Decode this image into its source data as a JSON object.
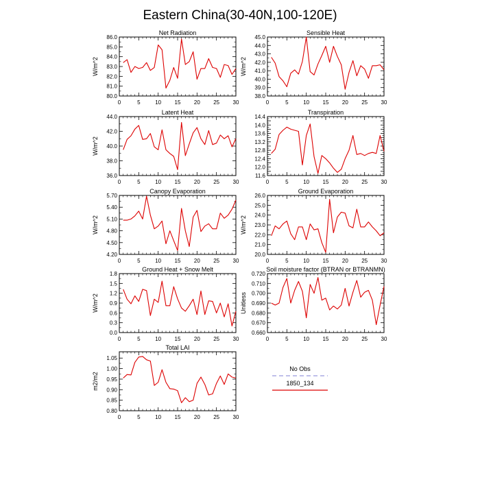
{
  "figure": {
    "title": "Eastern China(30-40N,100-120E)"
  },
  "legend": {
    "items": [
      {
        "label": "No Obs",
        "color": "#9999dd",
        "dashed": true
      },
      {
        "label": "1850_134",
        "color": "#dd0000",
        "dashed": false
      }
    ]
  },
  "chart_data": [
    {
      "type": "line",
      "title": "Net Radiation",
      "ylabel": "W/m^2",
      "xlim": [
        0,
        30
      ],
      "ylim": [
        80.0,
        86.0
      ],
      "xticks": [
        0,
        5,
        10,
        15,
        20,
        25,
        30
      ],
      "yticks": [
        80.0,
        81.0,
        82.0,
        83.0,
        84.0,
        85.0,
        86.0
      ],
      "ytick_labels": [
        "80.0",
        "81.0",
        "82.0",
        "83.0",
        "84.0",
        "85.0",
        "86.0"
      ],
      "series": [
        {
          "name": "1850_134",
          "color": "#dd0000",
          "x": [
            1,
            2,
            3,
            4,
            5,
            6,
            7,
            8,
            9,
            10,
            11,
            12,
            13,
            14,
            15,
            16,
            17,
            18,
            19,
            20,
            21,
            22,
            23,
            24,
            25,
            26,
            27,
            28,
            29,
            30
          ],
          "y": [
            83.4,
            83.7,
            82.4,
            83.0,
            82.8,
            82.9,
            83.4,
            82.6,
            82.9,
            85.2,
            84.7,
            80.8,
            81.6,
            82.9,
            81.8,
            85.8,
            83.2,
            83.5,
            84.5,
            81.7,
            82.8,
            82.8,
            83.8,
            82.9,
            82.8,
            81.9,
            83.2,
            83.1,
            82.2,
            82.8
          ]
        }
      ]
    },
    {
      "type": "line",
      "title": "Sensible Heat",
      "ylabel": "W/m^2",
      "xlim": [
        0,
        30
      ],
      "ylim": [
        38.0,
        45.0
      ],
      "xticks": [
        0,
        5,
        10,
        15,
        20,
        25,
        30
      ],
      "yticks": [
        38.0,
        39.0,
        40.0,
        41.0,
        42.0,
        43.0,
        44.0,
        45.0
      ],
      "ytick_labels": [
        "38.0",
        "39.0",
        "40.0",
        "41.0",
        "42.0",
        "43.0",
        "44.0",
        "45.0"
      ],
      "series": [
        {
          "name": "1850_134",
          "color": "#dd0000",
          "x": [
            1,
            2,
            3,
            4,
            5,
            6,
            7,
            8,
            9,
            10,
            11,
            12,
            13,
            14,
            15,
            16,
            17,
            18,
            19,
            20,
            21,
            22,
            23,
            24,
            25,
            26,
            27,
            28,
            29,
            30
          ],
          "y": [
            42.6,
            41.9,
            40.3,
            39.8,
            39.1,
            40.7,
            41.1,
            40.6,
            42.1,
            45.0,
            40.9,
            40.5,
            41.8,
            42.8,
            43.9,
            42.0,
            43.9,
            42.7,
            41.7,
            38.8,
            40.8,
            42.2,
            40.4,
            41.6,
            41.2,
            40.1,
            41.6,
            41.6,
            41.7,
            41.1
          ]
        }
      ]
    },
    {
      "type": "line",
      "title": "Latent Heat",
      "ylabel": "W/m^2",
      "xlim": [
        0,
        30
      ],
      "ylim": [
        36.0,
        44.0
      ],
      "xticks": [
        0,
        5,
        10,
        15,
        20,
        25,
        30
      ],
      "yticks": [
        36.0,
        38.0,
        40.0,
        42.0,
        44.0
      ],
      "ytick_labels": [
        "36.0",
        "38.0",
        "40.0",
        "42.0",
        "44.0"
      ],
      "series": [
        {
          "name": "1850_134",
          "color": "#dd0000",
          "x": [
            1,
            2,
            3,
            4,
            5,
            6,
            7,
            8,
            9,
            10,
            11,
            12,
            13,
            14,
            15,
            16,
            17,
            18,
            19,
            20,
            21,
            22,
            23,
            24,
            25,
            26,
            27,
            28,
            29,
            30
          ],
          "y": [
            39.5,
            40.9,
            41.4,
            42.3,
            42.8,
            40.9,
            41.0,
            41.7,
            39.9,
            39.5,
            42.2,
            39.5,
            39.0,
            38.6,
            36.8,
            43.2,
            38.7,
            40.3,
            41.8,
            42.5,
            41.0,
            40.2,
            42.1,
            40.2,
            40.4,
            41.5,
            41.0,
            41.4,
            39.9,
            41.0
          ]
        }
      ]
    },
    {
      "type": "line",
      "title": "Transpiration",
      "ylabel": "",
      "xlim": [
        0,
        30
      ],
      "ylim": [
        11.6,
        14.4
      ],
      "xticks": [
        0,
        5,
        10,
        15,
        20,
        25,
        30
      ],
      "yticks": [
        11.6,
        11.8,
        12.0,
        12.2,
        12.4,
        12.6,
        12.8,
        13.0,
        13.2,
        13.4,
        13.6,
        13.8,
        14.0,
        14.2,
        14.4
      ],
      "ytick_labels": [
        "11.6",
        "",
        "12.0",
        "",
        "12.4",
        "",
        "12.8",
        "",
        "13.2",
        "",
        "13.6",
        "",
        "14.0",
        "",
        "14.4"
      ],
      "series": [
        {
          "name": "1850_134",
          "color": "#dd0000",
          "x": [
            1,
            2,
            3,
            4,
            5,
            6,
            7,
            8,
            9,
            10,
            11,
            12,
            13,
            14,
            15,
            16,
            17,
            18,
            19,
            20,
            21,
            22,
            23,
            24,
            25,
            26,
            27,
            28,
            29,
            30
          ],
          "y": [
            12.65,
            12.85,
            13.55,
            13.75,
            13.9,
            13.8,
            13.75,
            13.7,
            12.1,
            13.5,
            14.05,
            12.5,
            11.7,
            12.55,
            12.4,
            12.2,
            11.95,
            11.75,
            11.9,
            12.4,
            12.8,
            13.5,
            12.6,
            12.65,
            12.55,
            12.65,
            12.7,
            12.65,
            13.5,
            12.75
          ]
        }
      ]
    },
    {
      "type": "line",
      "title": "Canopy Evaporation",
      "ylabel": "W/m^2",
      "xlim": [
        0,
        30
      ],
      "ylim": [
        4.2,
        5.7
      ],
      "xticks": [
        0,
        5,
        10,
        15,
        20,
        25,
        30
      ],
      "yticks": [
        4.2,
        4.5,
        4.8,
        5.1,
        5.4,
        5.7
      ],
      "ytick_labels": [
        "4.20",
        "4.50",
        "4.80",
        "5.10",
        "5.40",
        "5.70"
      ],
      "series": [
        {
          "name": "1850_134",
          "color": "#dd0000",
          "x": [
            1,
            2,
            3,
            4,
            5,
            6,
            7,
            8,
            9,
            10,
            11,
            12,
            13,
            14,
            15,
            16,
            17,
            18,
            19,
            20,
            21,
            22,
            23,
            24,
            25,
            26,
            27,
            28,
            29,
            30
          ],
          "y": [
            5.07,
            5.07,
            5.1,
            5.18,
            5.3,
            5.1,
            5.68,
            5.2,
            4.85,
            4.92,
            5.05,
            4.47,
            4.8,
            4.55,
            4.3,
            5.37,
            4.8,
            4.4,
            5.15,
            5.32,
            4.78,
            4.92,
            4.98,
            4.85,
            4.85,
            5.25,
            5.12,
            5.2,
            5.35,
            5.58
          ]
        }
      ]
    },
    {
      "type": "line",
      "title": "Ground Evaporation",
      "ylabel": "W/m^2",
      "xlim": [
        0,
        30
      ],
      "ylim": [
        20.0,
        26.0
      ],
      "xticks": [
        0,
        5,
        10,
        15,
        20,
        25,
        30
      ],
      "yticks": [
        20.0,
        21.0,
        22.0,
        23.0,
        24.0,
        25.0,
        26.0
      ],
      "ytick_labels": [
        "20.0",
        "21.0",
        "22.0",
        "23.0",
        "24.0",
        "25.0",
        "26.0"
      ],
      "series": [
        {
          "name": "1850_134",
          "color": "#dd0000",
          "x": [
            1,
            2,
            3,
            4,
            5,
            6,
            7,
            8,
            9,
            10,
            11,
            12,
            13,
            14,
            15,
            16,
            17,
            18,
            19,
            20,
            21,
            22,
            23,
            24,
            25,
            26,
            27,
            28,
            29,
            30
          ],
          "y": [
            21.9,
            22.9,
            22.6,
            23.1,
            23.4,
            22.1,
            21.5,
            22.8,
            22.8,
            21.5,
            23.1,
            22.5,
            22.6,
            21.2,
            20.2,
            25.6,
            22.2,
            23.8,
            24.3,
            24.2,
            22.9,
            22.7,
            24.6,
            22.8,
            22.8,
            23.3,
            22.8,
            22.4,
            21.9,
            22.2
          ]
        }
      ]
    },
    {
      "type": "line",
      "title": "Ground Heat + Snow Melt",
      "ylabel": "W/m^2",
      "xlim": [
        0,
        30
      ],
      "ylim": [
        0.0,
        1.8
      ],
      "xticks": [
        0,
        5,
        10,
        15,
        20,
        25,
        30
      ],
      "yticks": [
        0.0,
        0.3,
        0.6,
        0.9,
        1.2,
        1.5,
        1.8
      ],
      "ytick_labels": [
        "0.0",
        "0.3",
        "0.6",
        "0.9",
        "1.2",
        "1.5",
        "1.8"
      ],
      "series": [
        {
          "name": "1850_134",
          "color": "#dd0000",
          "x": [
            1,
            2,
            3,
            4,
            5,
            6,
            7,
            8,
            9,
            10,
            11,
            12,
            13,
            14,
            15,
            16,
            17,
            18,
            19,
            20,
            21,
            22,
            23,
            24,
            25,
            26,
            27,
            28,
            29,
            30
          ],
          "y": [
            1.32,
            1.02,
            0.88,
            1.12,
            0.95,
            1.32,
            1.28,
            0.52,
            1.02,
            0.92,
            1.57,
            0.82,
            0.82,
            1.4,
            1.03,
            0.75,
            0.65,
            0.82,
            1.02,
            0.55,
            1.27,
            0.55,
            0.97,
            0.95,
            0.6,
            0.9,
            0.48,
            0.88,
            0.2,
            0.65
          ]
        }
      ]
    },
    {
      "type": "line",
      "title": "Soil moisture factor (BTRAN or BTRANMN)",
      "ylabel": "Unitless",
      "xlim": [
        0,
        30
      ],
      "ylim": [
        0.66,
        0.72
      ],
      "xticks": [
        0,
        5,
        10,
        15,
        20,
        25,
        30
      ],
      "yticks": [
        0.66,
        0.67,
        0.68,
        0.69,
        0.7,
        0.71,
        0.72
      ],
      "ytick_labels": [
        "0.660",
        "0.670",
        "0.680",
        "0.690",
        "0.700",
        "0.710",
        "0.720"
      ],
      "series": [
        {
          "name": "1850_134",
          "color": "#dd0000",
          "x": [
            1,
            2,
            3,
            4,
            5,
            6,
            7,
            8,
            9,
            10,
            11,
            12,
            13,
            14,
            15,
            16,
            17,
            18,
            19,
            20,
            21,
            22,
            23,
            24,
            25,
            26,
            27,
            28,
            29,
            30
          ],
          "y": [
            0.69,
            0.688,
            0.69,
            0.706,
            0.715,
            0.69,
            0.703,
            0.712,
            0.702,
            0.675,
            0.709,
            0.7,
            0.716,
            0.693,
            0.695,
            0.683,
            0.687,
            0.684,
            0.688,
            0.705,
            0.687,
            0.701,
            0.713,
            0.696,
            0.701,
            0.703,
            0.693,
            0.668,
            0.688,
            0.707
          ]
        }
      ]
    },
    {
      "type": "line",
      "title": "Total LAI",
      "ylabel": "m2/m2",
      "xlim": [
        0,
        30
      ],
      "ylim": [
        0.8,
        1.08
      ],
      "xticks": [
        0,
        5,
        10,
        15,
        20,
        25,
        30
      ],
      "yticks": [
        0.8,
        0.85,
        0.9,
        0.95,
        1.0,
        1.05
      ],
      "ytick_labels": [
        "0.80",
        "0.85",
        "0.90",
        "0.95",
        "1.00",
        "1.05"
      ],
      "series": [
        {
          "name": "1850_134",
          "color": "#dd0000",
          "x": [
            1,
            2,
            3,
            4,
            5,
            6,
            7,
            8,
            9,
            10,
            11,
            12,
            13,
            14,
            15,
            16,
            17,
            18,
            19,
            20,
            21,
            22,
            23,
            24,
            25,
            26,
            27,
            28,
            29,
            30
          ],
          "y": [
            0.955,
            0.972,
            0.97,
            1.03,
            1.055,
            1.058,
            1.042,
            1.036,
            0.92,
            0.935,
            0.995,
            0.935,
            0.905,
            0.903,
            0.895,
            0.838,
            0.862,
            0.843,
            0.85,
            0.93,
            0.96,
            0.925,
            0.875,
            0.88,
            0.93,
            0.965,
            0.925,
            0.975,
            0.96,
            0.955
          ]
        }
      ]
    }
  ]
}
